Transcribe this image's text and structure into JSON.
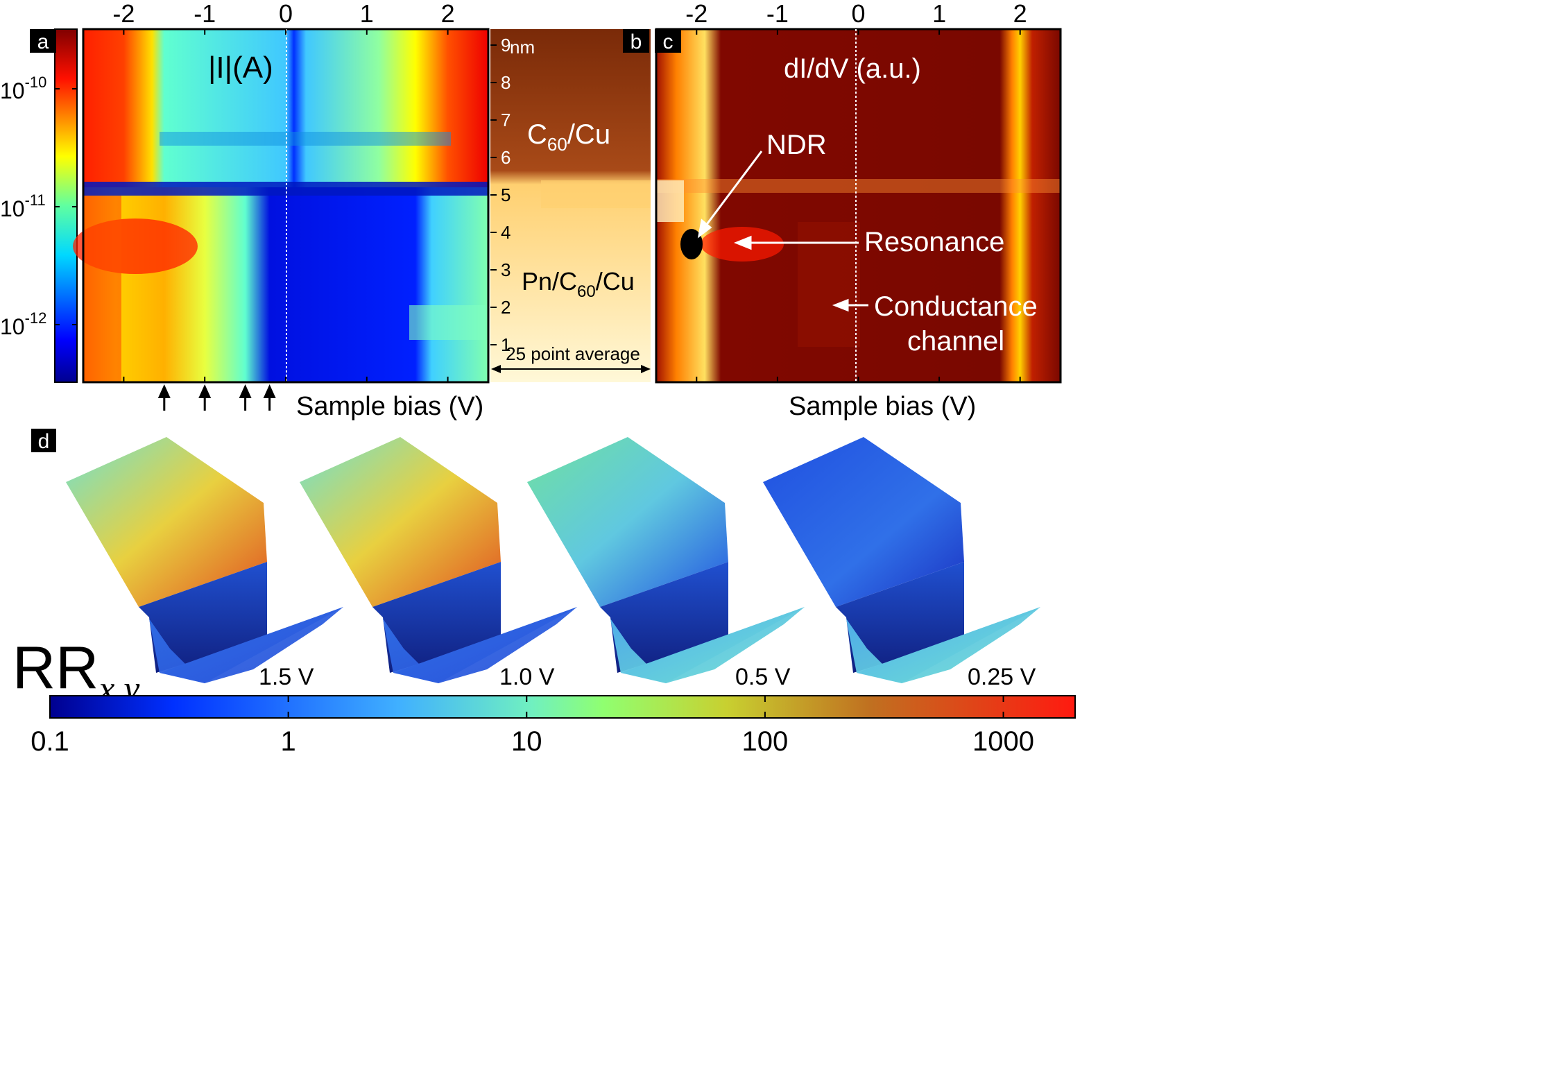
{
  "chart_data": [
    {
      "panel": "a",
      "type": "heatmap",
      "label": "a",
      "title": "|I|(A)",
      "xlabel": "Sample bias (V)",
      "x_ticks": [
        "-2",
        "-1",
        "0",
        "1",
        "2"
      ],
      "xlim": [
        -2.5,
        2.5
      ],
      "colorbar": {
        "scale": "log",
        "ticks": [
          {
            "base": "10",
            "exp": "-10"
          },
          {
            "base": "10",
            "exp": "-11"
          },
          {
            "base": "10",
            "exp": "-12"
          }
        ],
        "range": [
          "3e-13",
          "3e-10"
        ]
      },
      "arrow_biases": [
        -1.5,
        -1.0,
        -0.5,
        -0.2
      ],
      "regions": [
        {
          "name": "C60/Cu",
          "y_nm": [
            5.3,
            9.3
          ]
        },
        {
          "name": "Pn/C60/Cu",
          "y_nm": [
            0,
            5.3
          ]
        }
      ]
    },
    {
      "panel": "b",
      "type": "heatmap",
      "label": "b",
      "unit": "nm",
      "y_ticks": [
        "1",
        "2",
        "3",
        "4",
        "5",
        "6",
        "7",
        "8",
        "9"
      ],
      "label_top": "C",
      "label_top_sub": "60",
      "label_top_rest": "/Cu",
      "label_bottom_pre": "Pn/C",
      "label_bottom_sub": "60",
      "label_bottom_rest": "/Cu",
      "note": "25 point average"
    },
    {
      "panel": "c",
      "type": "heatmap",
      "label": "c",
      "title": "dI/dV (a.u.)",
      "xlabel": "Sample bias (V)",
      "x_ticks": [
        "-2",
        "-1",
        "0",
        "1",
        "2"
      ],
      "xlim": [
        -2.5,
        2.5
      ],
      "annotations": [
        {
          "text": "NDR",
          "bias": -2.0,
          "y_nm": 4.0
        },
        {
          "text": "Resonance",
          "bias": -1.5,
          "y_nm": 4.0
        },
        {
          "text": "Conductance",
          "text2": "channel",
          "bias": -0.2,
          "y_nm": 1.5
        }
      ]
    },
    {
      "panel": "d",
      "type": "heatmap",
      "label": "d",
      "colorbar_label_main": "RR",
      "colorbar_label_sub": "x,y",
      "surfaces": [
        "1.5 V",
        "1.0 V",
        "0.5 V",
        "0.25 V"
      ],
      "colorbar": {
        "scale": "log",
        "ticks": [
          "0.1",
          "1",
          "10",
          "100",
          "1000"
        ],
        "range": [
          0.1,
          2000
        ]
      }
    }
  ]
}
